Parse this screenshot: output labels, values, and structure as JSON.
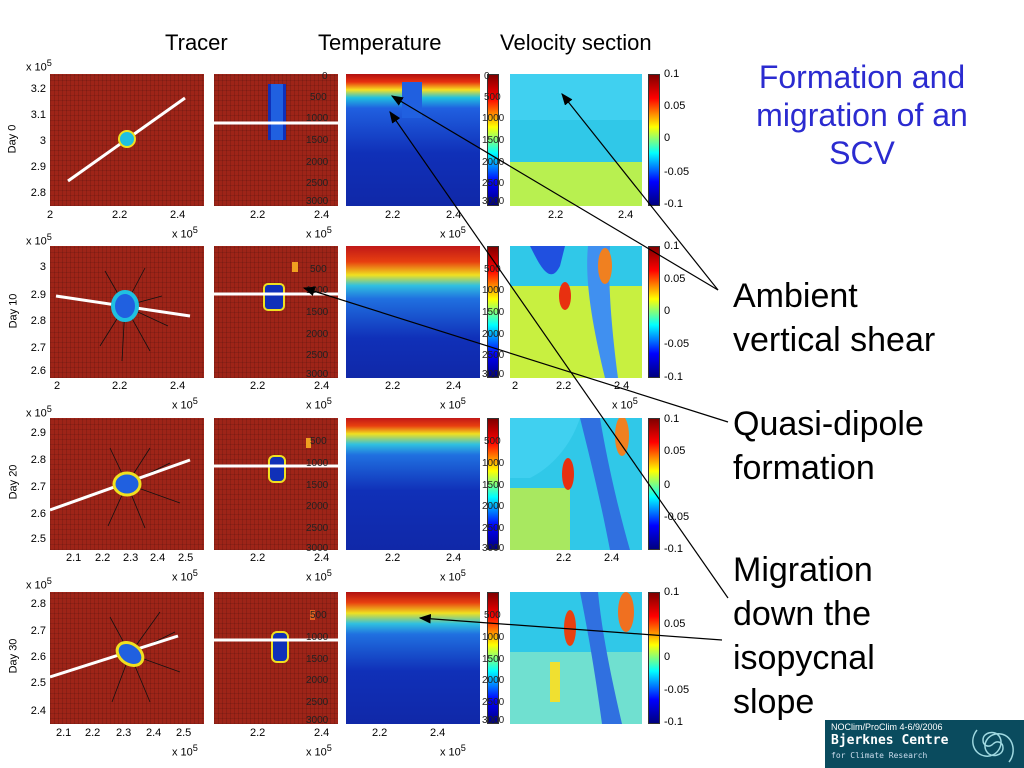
{
  "column_titles": {
    "tracer": "Tracer",
    "temperature": "Temperature",
    "velocity": "Velocity section"
  },
  "title": "Formation and migration of an SCV",
  "title_lines": [
    "Formation and",
    "migration of an",
    "SCV"
  ],
  "annotations": {
    "shear": [
      "Ambient",
      "vertical shear"
    ],
    "dipole": [
      "Quasi-dipole",
      "formation"
    ],
    "migration": [
      "Migration",
      "down the",
      "isopycnal",
      "slope"
    ]
  },
  "rows": [
    {
      "label": "Day 0",
      "yticks": [
        "3.2",
        "3.1",
        "3",
        "2.9",
        "2.8"
      ],
      "xticks": [
        "2",
        "2.2",
        "2.4"
      ]
    },
    {
      "label": "Day 10",
      "yticks": [
        "3",
        "2.9",
        "2.8",
        "2.7",
        "2.6"
      ],
      "xticks": [
        "2",
        "2.2",
        "2.4"
      ]
    },
    {
      "label": "Day 20",
      "yticks": [
        "2.9",
        "2.8",
        "2.7",
        "2.6",
        "2.5"
      ],
      "xticks": [
        "2.1",
        "2.2",
        "2.3",
        "2.4",
        "2.5"
      ]
    },
    {
      "label": "Day 30",
      "yticks": [
        "2.8",
        "2.7",
        "2.6",
        "2.5",
        "2.4"
      ],
      "xticks": [
        "2.1",
        "2.2",
        "2.3",
        "2.4",
        "2.5"
      ]
    }
  ],
  "exponent_label": "x 10",
  "exponent_power": "5",
  "section_xticks": [
    "2.2",
    "2.4"
  ],
  "depth_ticks": [
    "0",
    "500",
    "1000",
    "1500",
    "2000",
    "2500",
    "3000"
  ],
  "velocity_colorbar_ticks": [
    "0.1",
    "0.05",
    "0",
    "-0.05",
    "-0.1"
  ],
  "footer": {
    "meeting": "NOClim/ProClim 4-6/9/2006",
    "org": "Bjerknes Centre",
    "sub": "for Climate Research"
  },
  "colors": {
    "title": "#2b2bd0",
    "panel_red": "#9e2418",
    "footer_bg": "#0a4b5e"
  }
}
